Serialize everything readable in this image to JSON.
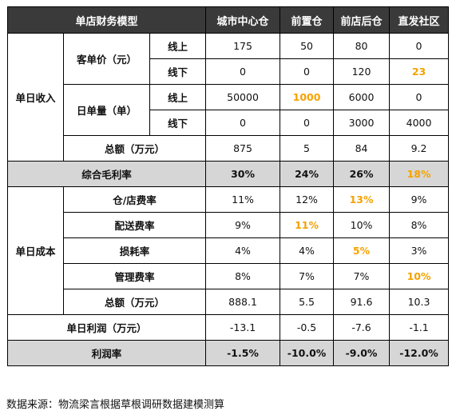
{
  "header": [
    "单店财务模型",
    "城市中心仓",
    "前置仓",
    "前店后仓",
    "直发社区"
  ],
  "revenue": {
    "section_label": "单日收入",
    "aov": {
      "label": "客单价（元）",
      "online": {
        "label": "线上",
        "values": [
          "175",
          "50",
          "80",
          "0"
        ]
      },
      "offline": {
        "label": "线下",
        "values": [
          "0",
          "0",
          "120",
          "23"
        ]
      }
    },
    "orders": {
      "label": "日单量（单）",
      "online": {
        "label": "线上",
        "values": [
          "50000",
          "1000",
          "6000",
          "0"
        ]
      },
      "offline": {
        "label": "线下",
        "values": [
          "0",
          "0",
          "3000",
          "4000"
        ]
      }
    },
    "total": {
      "label": "总额（万元）",
      "values": [
        "875",
        "5",
        "84",
        "9.2"
      ]
    }
  },
  "gross_margin": {
    "label": "综合毛利率",
    "values": [
      "30%",
      "24%",
      "26%",
      "18%"
    ]
  },
  "cost": {
    "section_label": "单日成本",
    "rows": [
      {
        "label": "仓/店费率",
        "values": [
          "11%",
          "12%",
          "13%",
          "9%"
        ]
      },
      {
        "label": "配送费率",
        "values": [
          "9%",
          "11%",
          "10%",
          "8%"
        ]
      },
      {
        "label": "损耗率",
        "values": [
          "4%",
          "4%",
          "5%",
          "3%"
        ]
      },
      {
        "label": "管理费率",
        "values": [
          "8%",
          "7%",
          "7%",
          "10%"
        ]
      },
      {
        "label": "总额（万元）",
        "values": [
          "888.1",
          "5.5",
          "91.6",
          "10.3"
        ]
      }
    ]
  },
  "daily_profit": {
    "label": "单日利润（万元）",
    "values": [
      "-13.1",
      "-0.5",
      "-7.6",
      "-1.1"
    ]
  },
  "profit_rate": {
    "label": "利润率",
    "values": [
      "-1.5%",
      "-10.0%",
      "-9.0%",
      "-12.0%"
    ]
  },
  "source": "数据来源：物流梁言根据草根调研数据建模测算",
  "colors": {
    "header_bg": "#3a3a3a",
    "highlight": "#f5a200",
    "gray_row": "#d6d6d6"
  }
}
